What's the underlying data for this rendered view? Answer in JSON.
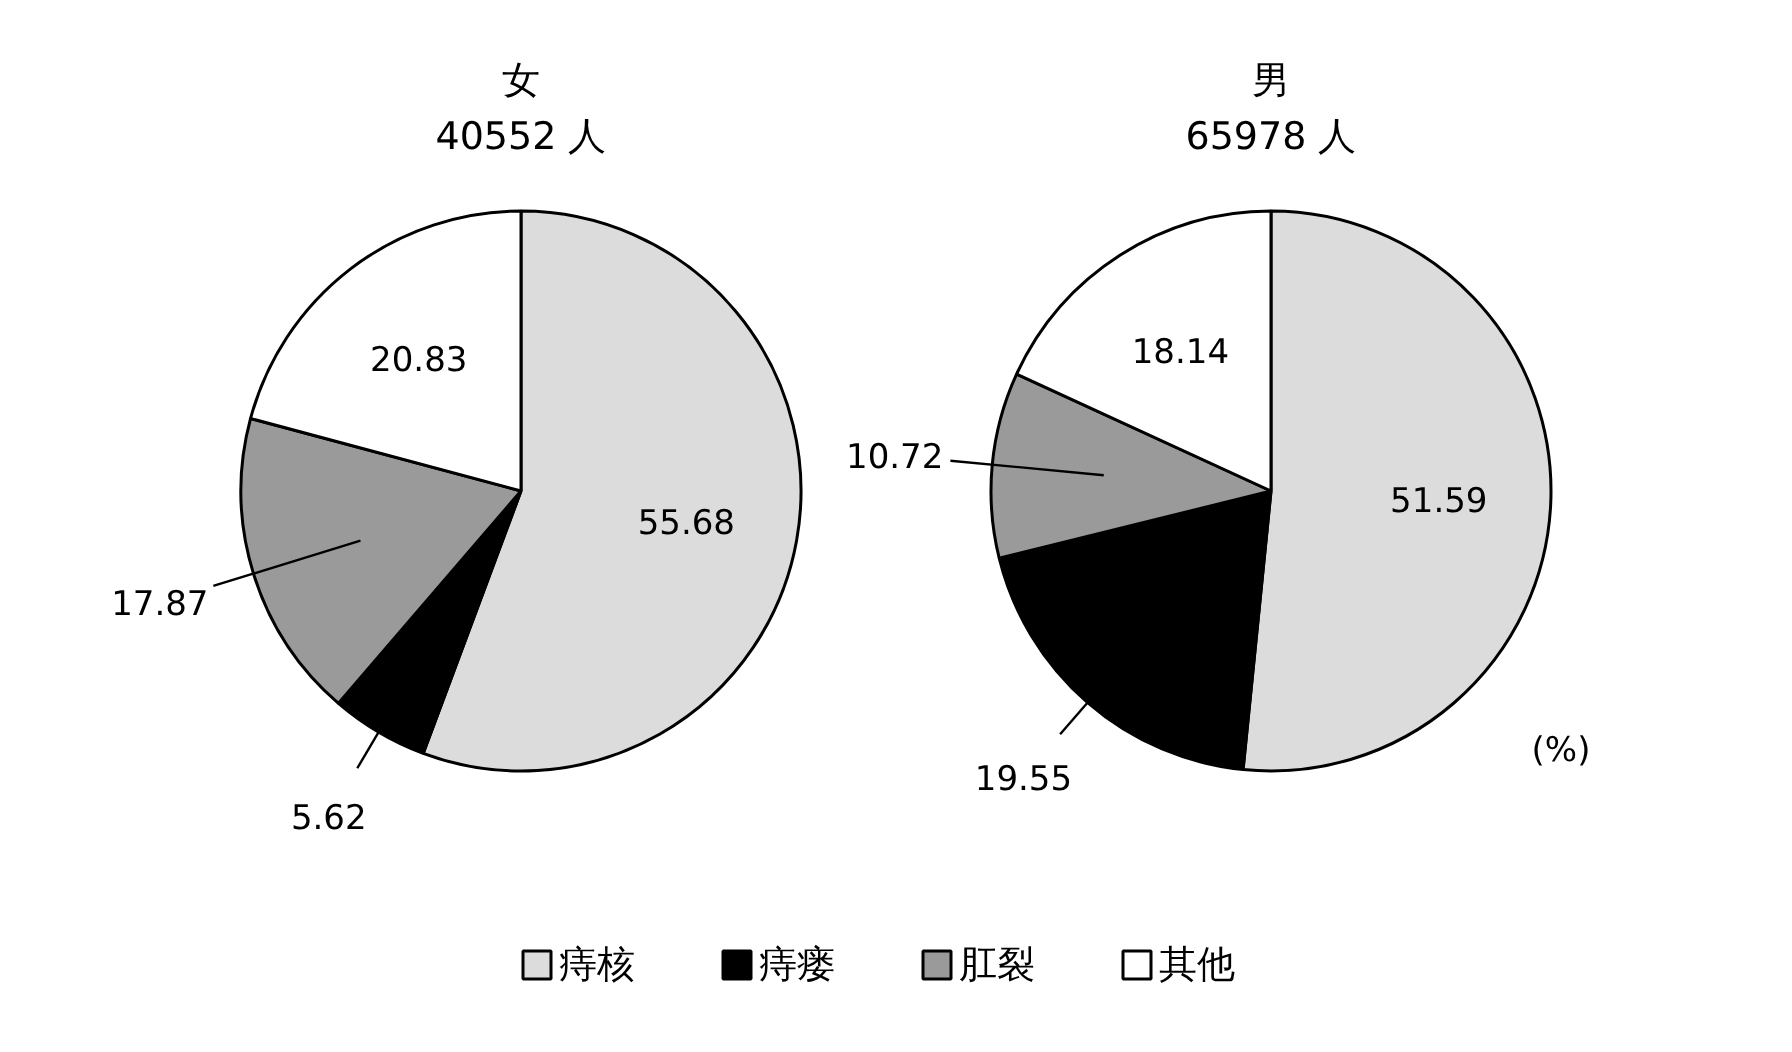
{
  "chart_data": [
    {
      "type": "pie",
      "title": "女",
      "subtitle": "40552 人",
      "categories": [
        "痔核",
        "痔瘘",
        "肛裂",
        "其他"
      ],
      "values": [
        55.68,
        5.62,
        17.87,
        20.83
      ],
      "colors": [
        "#dcdcdc",
        "#000000",
        "#9a9a9a",
        "#ffffff"
      ],
      "data_labels": true,
      "legend": "bottom"
    },
    {
      "type": "pie",
      "title": "男",
      "subtitle": "65978 人",
      "categories": [
        null,
        null,
        null,
        null
      ],
      "values": [
        51.59,
        19.55,
        10.72,
        18.14
      ],
      "colors": [
        "#dcdcdc",
        "#000000",
        "#9a9a9a",
        "#ffffff"
      ],
      "data_labels": true,
      "annotations": [
        "(%)"
      ]
    }
  ]
}
